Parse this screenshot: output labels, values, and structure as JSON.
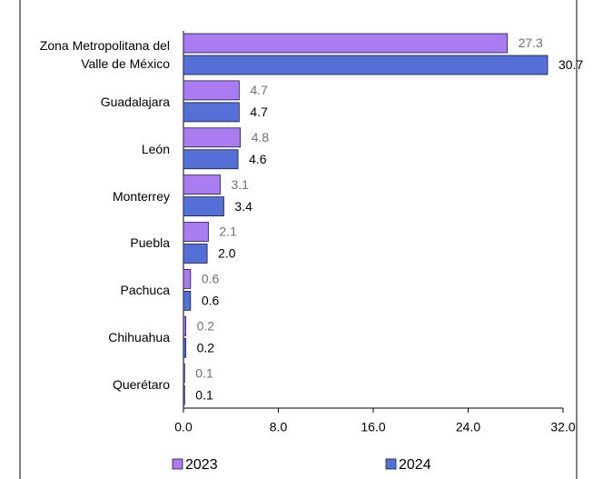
{
  "chart_data": {
    "type": "bar",
    "orientation": "horizontal",
    "categories": [
      "Zona Metropolitana del Valle de México",
      "Guadalajara",
      "León",
      "Monterrey",
      "Puebla",
      "Pachuca",
      "Chihuahua",
      "Querétaro"
    ],
    "series": [
      {
        "name": "2023",
        "color": "#a97cf2",
        "label_color": "#707070",
        "values": [
          27.3,
          4.7,
          4.8,
          3.1,
          2.1,
          0.6,
          0.2,
          0.1
        ],
        "value_labels": [
          "27.3",
          "4.7",
          "4.8",
          "3.1",
          "2.1",
          "0.6",
          "0.2",
          "0.1"
        ]
      },
      {
        "name": "2024",
        "color": "#5470d6",
        "label_color": "#000000",
        "values": [
          30.7,
          4.7,
          4.6,
          3.4,
          2.0,
          0.6,
          0.2,
          0.1
        ],
        "value_labels": [
          "30.7",
          "4.7",
          "4.6",
          "3.4",
          "2.0",
          "0.6",
          "0.2",
          "0.1"
        ]
      }
    ],
    "xlim": [
      0,
      32
    ],
    "xticks": [
      {
        "value": 0,
        "label": "0.0"
      },
      {
        "value": 8,
        "label": "8.0"
      },
      {
        "value": 16,
        "label": "16.0"
      },
      {
        "value": 24,
        "label": "24.0"
      },
      {
        "value": 32,
        "label": "32.0"
      }
    ],
    "grid": false,
    "legend": "bottom"
  }
}
